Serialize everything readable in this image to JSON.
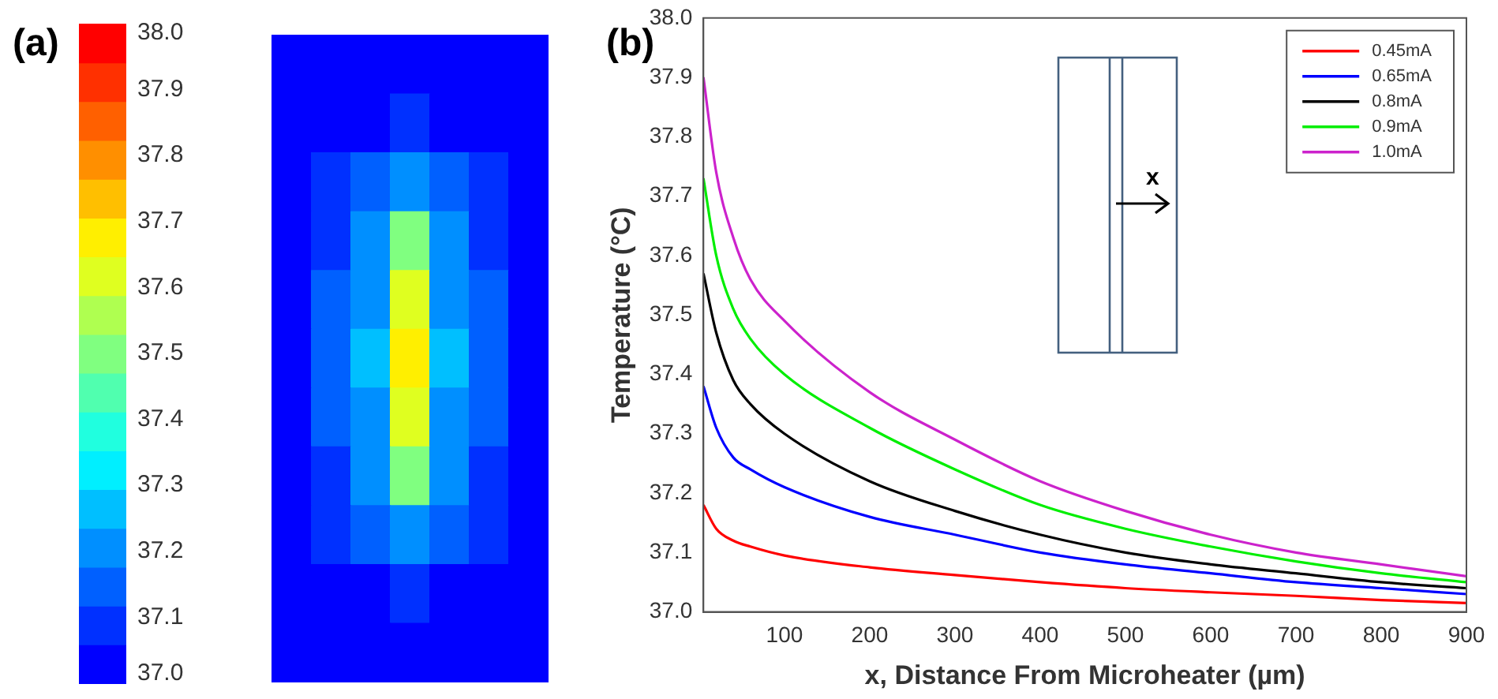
{
  "chart_data": [
    {
      "type": "heatmap",
      "annotations": [
        "(a)"
      ],
      "tick_labels": false,
      "categories": [
        null,
        null,
        null,
        null,
        null,
        null,
        null
      ],
      "y_categories": [
        null,
        null,
        null,
        null,
        null,
        null,
        null,
        null,
        null,
        null,
        null
      ],
      "cells": [
        [
          37.0,
          37.0,
          37.0,
          37.0,
          37.0,
          37.0,
          37.0
        ],
        [
          37.0,
          37.0,
          37.05,
          37.07,
          37.05,
          37.0,
          37.0
        ],
        [
          37.0,
          37.06,
          37.12,
          37.2,
          37.12,
          37.06,
          37.0
        ],
        [
          37.02,
          37.1,
          37.18,
          37.5,
          37.18,
          37.1,
          37.02
        ],
        [
          37.03,
          37.12,
          37.22,
          37.6,
          37.22,
          37.12,
          37.03
        ],
        [
          37.03,
          37.13,
          37.24,
          37.65,
          37.24,
          37.13,
          37.03
        ],
        [
          37.03,
          37.12,
          37.23,
          37.6,
          37.23,
          37.12,
          37.03
        ],
        [
          37.02,
          37.1,
          37.18,
          37.5,
          37.18,
          37.1,
          37.02
        ],
        [
          37.0,
          37.06,
          37.12,
          37.2,
          37.12,
          37.06,
          37.0
        ],
        [
          37.0,
          37.02,
          37.05,
          37.07,
          37.05,
          37.02,
          37.0
        ],
        [
          37.0,
          37.0,
          37.0,
          37.0,
          37.0,
          37.0,
          37.0
        ]
      ],
      "clim": [
        37.0,
        38.0
      ],
      "cticks": [
        {
          "value": 37.0,
          "label": "37.0"
        },
        37.1,
        37.2,
        37.3,
        37.4,
        37.5,
        37.6,
        37.7,
        37.8,
        37.9,
        {
          "value": 38.0,
          "label": "38.0"
        }
      ]
    },
    {
      "type": "line",
      "annotations": [
        "(b)",
        "x"
      ],
      "xlabel": "x, Distance From Microheater (µm)",
      "ylabel": "Temperature (°C)",
      "x": [
        5,
        20,
        40,
        60,
        100,
        200,
        300,
        400,
        500,
        600,
        700,
        800,
        900
      ],
      "series": [
        {
          "name": "0.45mA",
          "color": "#ff0000",
          "values": [
            37.18,
            37.14,
            37.12,
            37.11,
            37.095,
            37.075,
            37.062,
            37.05,
            37.04,
            37.033,
            37.027,
            37.02,
            37.015
          ]
        },
        {
          "name": "0.65mA",
          "color": "#0000ff",
          "values": [
            37.38,
            37.31,
            37.26,
            37.24,
            37.21,
            37.16,
            37.13,
            37.1,
            37.08,
            37.065,
            37.05,
            37.04,
            37.03
          ]
        },
        {
          "name": "0.8mA",
          "color": "#000000",
          "values": [
            37.57,
            37.47,
            37.39,
            37.35,
            37.3,
            37.22,
            37.17,
            37.13,
            37.1,
            37.08,
            37.065,
            37.05,
            37.04
          ]
        },
        {
          "name": "0.9mA",
          "color": "#00ee00",
          "values": [
            37.73,
            37.6,
            37.51,
            37.46,
            37.4,
            37.31,
            37.24,
            37.18,
            37.14,
            37.11,
            37.085,
            37.065,
            37.05
          ]
        },
        {
          "name": "1.0mA",
          "color": "#cc22cc",
          "values": [
            37.9,
            37.74,
            37.63,
            37.56,
            37.49,
            37.37,
            37.29,
            37.22,
            37.17,
            37.13,
            37.1,
            37.08,
            37.06
          ]
        }
      ],
      "xlim": [
        5,
        900
      ],
      "xticks": [
        100,
        200,
        300,
        400,
        500,
        600,
        700,
        800,
        900
      ],
      "ylim": [
        37.0,
        38.0
      ],
      "yticks": [
        {
          "value": 37.0,
          "label": "37.0"
        },
        37.1,
        37.2,
        37.3,
        37.4,
        37.5,
        37.6,
        37.7,
        37.8,
        37.9,
        {
          "value": 38.0,
          "label": "38.0"
        }
      ],
      "legend": "top right",
      "grid": false,
      "marker": "none",
      "line_style": "solid"
    }
  ]
}
